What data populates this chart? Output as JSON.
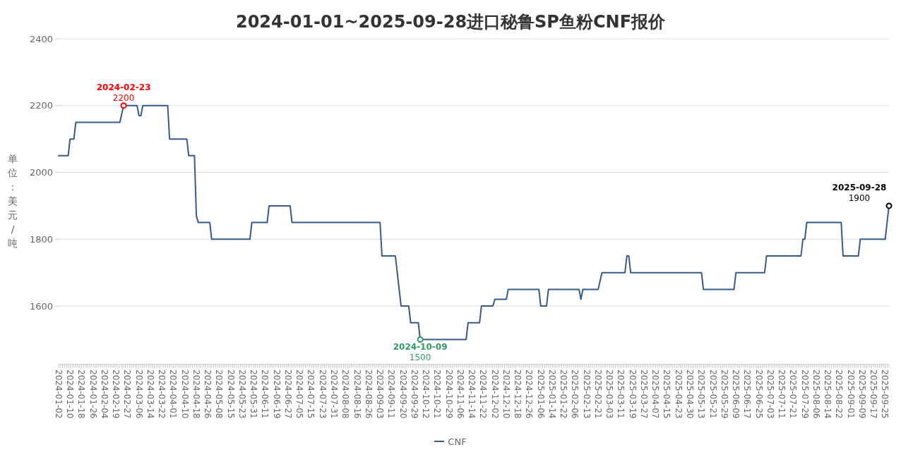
{
  "chart_data": {
    "type": "line",
    "title": "2024-01-01~2025-09-28进口秘鲁SP鱼粉CNF报价",
    "ylabel": "单位：美元/吨",
    "categories": [
      "2024-01-02",
      null,
      null,
      null,
      null,
      null,
      "2024-01-10",
      null,
      null,
      null,
      null,
      null,
      "2024-01-18",
      null,
      null,
      null,
      null,
      null,
      "2024-01-26",
      null,
      null,
      null,
      null,
      null,
      "2024-02-04",
      null,
      null,
      null,
      null,
      null,
      "2024-02-19",
      null,
      null,
      null,
      null,
      null,
      "2024-02-27",
      null,
      null,
      null,
      null,
      null,
      "2024-03-06",
      null,
      null,
      null,
      null,
      null,
      "2024-03-14",
      null,
      null,
      null,
      null,
      null,
      "2024-03-22",
      null,
      null,
      null,
      null,
      null,
      "2024-04-01",
      null,
      null,
      null,
      null,
      null,
      "2024-04-10",
      null,
      null,
      null,
      null,
      null,
      "2024-04-18",
      null,
      null,
      null,
      null,
      null,
      "2024-04-26",
      null,
      null,
      null,
      null,
      null,
      "2024-05-08",
      null,
      null,
      null,
      null,
      null,
      "2024-05-15",
      null,
      null,
      null,
      null,
      null,
      "2024-05-23",
      null,
      null,
      null,
      null,
      null,
      "2024-05-31",
      null,
      null,
      null,
      null,
      null,
      "2024-06-11",
      null,
      null,
      null,
      null,
      null,
      "2024-06-19",
      null,
      null,
      null,
      null,
      null,
      "2024-06-27",
      null,
      null,
      null,
      null,
      null,
      "2024-07-05",
      null,
      null,
      null,
      null,
      null,
      "2024-07-15",
      null,
      null,
      null,
      null,
      null,
      "2024-07-23",
      null,
      null,
      null,
      null,
      null,
      "2024-07-31",
      null,
      null,
      null,
      null,
      null,
      "2024-08-08",
      null,
      null,
      null,
      null,
      null,
      "2024-08-16",
      null,
      null,
      null,
      null,
      null,
      "2024-08-26",
      null,
      null,
      null,
      null,
      null,
      "2024-09-03",
      null,
      null,
      null,
      null,
      null,
      "2024-09-11",
      null,
      null,
      null,
      null,
      null,
      "2024-09-20",
      null,
      null,
      null,
      null,
      null,
      "2024-09-29",
      null,
      null,
      null,
      null,
      null,
      "2024-10-12",
      null,
      null,
      null,
      null,
      null,
      "2024-10-21",
      null,
      null,
      null,
      null,
      null,
      "2024-10-29",
      null,
      null,
      null,
      null,
      null,
      "2024-11-06",
      null,
      null,
      null,
      null,
      null,
      "2024-11-14",
      null,
      null,
      null,
      null,
      null,
      "2024-11-22",
      null,
      null,
      null,
      null,
      null,
      "2024-12-02",
      null,
      null,
      null,
      null,
      null,
      "2024-12-10",
      null,
      null,
      null,
      null,
      null,
      "2024-12-18",
      null,
      null,
      null,
      null,
      null,
      "2024-12-26",
      null,
      null,
      null,
      null,
      null,
      "2025-01-06",
      null,
      null,
      null,
      null,
      null,
      "2025-01-14",
      null,
      null,
      null,
      null,
      null,
      "2025-01-22",
      null,
      null,
      null,
      null,
      null,
      "2025-02-06",
      null,
      null,
      null,
      null,
      null,
      "2025-02-13",
      null,
      null,
      null,
      null,
      null,
      "2025-02-21",
      null,
      null,
      null,
      null,
      null,
      "2025-03-03",
      null,
      null,
      null,
      null,
      null,
      "2025-03-11",
      null,
      null,
      null,
      null,
      null,
      "2025-03-19",
      null,
      null,
      null,
      null,
      null,
      "2025-03-27",
      null,
      null,
      null,
      null,
      null,
      "2025-04-07",
      null,
      null,
      null,
      null,
      null,
      "2025-04-15",
      null,
      null,
      null,
      null,
      null,
      "2025-04-23",
      null,
      null,
      null,
      null,
      null,
      "2025-04-30",
      null,
      null,
      null,
      null,
      null,
      "2025-05-13",
      null,
      null,
      null,
      null,
      null,
      "2025-05-21",
      null,
      null,
      null,
      null,
      null,
      "2025-05-29",
      null,
      null,
      null,
      null,
      null,
      "2025-06-09",
      null,
      null,
      null,
      null,
      null,
      "2025-06-17",
      null,
      null,
      null,
      null,
      null,
      "2025-06-25",
      null,
      null,
      null,
      null,
      null,
      "2025-07-03",
      null,
      null,
      null,
      null,
      null,
      "2025-07-11",
      null,
      null,
      null,
      null,
      null,
      "2025-07-21",
      null,
      null,
      null,
      null,
      null,
      "2025-07-29",
      null,
      null,
      null,
      null,
      null,
      "2025-08-06",
      null,
      null,
      null,
      null,
      null,
      "2025-08-14",
      null,
      null,
      null,
      null,
      null,
      "2025-08-22",
      null,
      null,
      null,
      null,
      null,
      "2025-09-01",
      null,
      null,
      null,
      null,
      null,
      "2025-09-09",
      null,
      null,
      null,
      null,
      null,
      "2025-09-17",
      null,
      null,
      null,
      null,
      null,
      "2025-09-25",
      null,
      null
    ],
    "series": [
      {
        "name": "CNF",
        "color": "#375a8c",
        "values": [
          2050,
          2050,
          2050,
          2050,
          2050,
          2050,
          2100,
          2100,
          2100,
          2150,
          2150,
          2150,
          2150,
          2150,
          2150,
          2150,
          2150,
          2150,
          2150,
          2150,
          2150,
          2150,
          2150,
          2150,
          2150,
          2150,
          2150,
          2150,
          2150,
          2150,
          2150,
          2150,
          2150,
          2175,
          2200,
          2200,
          2200,
          2200,
          2200,
          2200,
          2200,
          2200,
          2170,
          2170,
          2200,
          2200,
          2200,
          2200,
          2200,
          2200,
          2200,
          2200,
          2200,
          2200,
          2200,
          2200,
          2200,
          2200,
          2100,
          2100,
          2100,
          2100,
          2100,
          2100,
          2100,
          2100,
          2100,
          2100,
          2050,
          2050,
          2050,
          2050,
          1870,
          1850,
          1850,
          1850,
          1850,
          1850,
          1850,
          1850,
          1800,
          1800,
          1800,
          1800,
          1800,
          1800,
          1800,
          1800,
          1800,
          1800,
          1800,
          1800,
          1800,
          1800,
          1800,
          1800,
          1800,
          1800,
          1800,
          1800,
          1800,
          1850,
          1850,
          1850,
          1850,
          1850,
          1850,
          1850,
          1850,
          1850,
          1900,
          1900,
          1900,
          1900,
          1900,
          1900,
          1900,
          1900,
          1900,
          1900,
          1900,
          1900,
          1850,
          1850,
          1850,
          1850,
          1850,
          1850,
          1850,
          1850,
          1850,
          1850,
          1850,
          1850,
          1850,
          1850,
          1850,
          1850,
          1850,
          1850,
          1850,
          1850,
          1850,
          1850,
          1850,
          1850,
          1850,
          1850,
          1850,
          1850,
          1850,
          1850,
          1850,
          1850,
          1850,
          1850,
          1850,
          1850,
          1850,
          1850,
          1850,
          1850,
          1850,
          1850,
          1850,
          1850,
          1850,
          1850,
          1850,
          1750,
          1750,
          1750,
          1750,
          1750,
          1750,
          1750,
          1750,
          1700,
          1650,
          1600,
          1600,
          1600,
          1600,
          1600,
          1550,
          1550,
          1550,
          1550,
          1550,
          1500,
          1500,
          1500,
          1500,
          1500,
          1500,
          1500,
          1500,
          1500,
          1500,
          1500,
          1500,
          1500,
          1500,
          1500,
          1500,
          1500,
          1500,
          1500,
          1500,
          1500,
          1500,
          1500,
          1500,
          1500,
          1550,
          1550,
          1550,
          1550,
          1550,
          1550,
          1550,
          1600,
          1600,
          1600,
          1600,
          1600,
          1600,
          1600,
          1620,
          1620,
          1620,
          1620,
          1620,
          1620,
          1620,
          1650,
          1650,
          1650,
          1650,
          1650,
          1650,
          1650,
          1650,
          1650,
          1650,
          1650,
          1650,
          1650,
          1650,
          1650,
          1650,
          1650,
          1600,
          1600,
          1600,
          1600,
          1650,
          1650,
          1650,
          1650,
          1650,
          1650,
          1650,
          1650,
          1650,
          1650,
          1650,
          1650,
          1650,
          1650,
          1650,
          1650,
          1650,
          1620,
          1650,
          1650,
          1650,
          1650,
          1650,
          1650,
          1650,
          1650,
          1650,
          1675,
          1700,
          1700,
          1700,
          1700,
          1700,
          1700,
          1700,
          1700,
          1700,
          1700,
          1700,
          1700,
          1700,
          1750,
          1750,
          1700,
          1700,
          1700,
          1700,
          1700,
          1700,
          1700,
          1700,
          1700,
          1700,
          1700,
          1700,
          1700,
          1700,
          1700,
          1700,
          1700,
          1700,
          1700,
          1700,
          1700,
          1700,
          1700,
          1700,
          1700,
          1700,
          1700,
          1700,
          1700,
          1700,
          1700,
          1700,
          1700,
          1700,
          1700,
          1700,
          1700,
          1700,
          1650,
          1650,
          1650,
          1650,
          1650,
          1650,
          1650,
          1650,
          1650,
          1650,
          1650,
          1650,
          1650,
          1650,
          1650,
          1650,
          1650,
          1700,
          1700,
          1700,
          1700,
          1700,
          1700,
          1700,
          1700,
          1700,
          1700,
          1700,
          1700,
          1700,
          1700,
          1700,
          1700,
          1750,
          1750,
          1750,
          1750,
          1750,
          1750,
          1750,
          1750,
          1750,
          1750,
          1750,
          1750,
          1750,
          1750,
          1750,
          1750,
          1750,
          1750,
          1750,
          1800,
          1800,
          1850,
          1850,
          1850,
          1850,
          1850,
          1850,
          1850,
          1850,
          1850,
          1850,
          1850,
          1850,
          1850,
          1850,
          1850,
          1850,
          1850,
          1850,
          1850,
          1750,
          1750,
          1750,
          1750,
          1750,
          1750,
          1750,
          1750,
          1750,
          1800,
          1800,
          1800,
          1800,
          1800,
          1800,
          1800,
          1800,
          1800,
          1800,
          1800,
          1800,
          1800,
          1800,
          1850,
          1900
        ]
      }
    ],
    "ylim": [
      1425,
      2400
    ],
    "yticks": [
      1600,
      1800,
      2000,
      2200,
      2400
    ],
    "grid": "y",
    "legend": "bottom",
    "marker": "none",
    "annotations": [
      {
        "text": "2024-02-23",
        "y": 2200
      },
      {
        "text": "2200",
        "y": 2200
      },
      {
        "text": "2024-10-09",
        "y": 1500
      },
      {
        "text": "1500",
        "y": 1500
      },
      "2025-09-28",
      "1900"
    ]
  }
}
